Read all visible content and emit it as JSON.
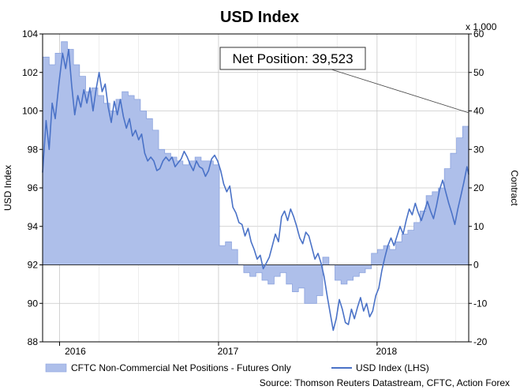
{
  "chart_data": {
    "type": "area+line",
    "title": "USD Index",
    "ylabel_left": "USD Index",
    "ylabel_right": "Contract",
    "right_scale_note": "x 1,000",
    "ylim_left": [
      88,
      104
    ],
    "ylim_right": [
      -20,
      60
    ],
    "yticks_left": [
      "88",
      "90",
      "92",
      "94",
      "96",
      "98",
      "100",
      "102",
      "104"
    ],
    "yticks_right": [
      "-20",
      "-10",
      "0",
      "10",
      "20",
      "30",
      "40",
      "50",
      "60"
    ],
    "xlim": [
      "2015-11-23",
      "2018-07-31"
    ],
    "xtick_labels": [
      {
        "date": "2016-01-01",
        "label": "2016"
      },
      {
        "date": "2017-01-01",
        "label": "2017"
      },
      {
        "date": "2018-01-01",
        "label": "2018"
      }
    ],
    "grid": true,
    "legend_position": "bottom",
    "annotation": {
      "text": "Net Position: 39,523",
      "date": "2018-07-31",
      "value": 39.523
    },
    "source": "Source: Thomson Reuters Datastream, CFTC, Action Forex",
    "colors": {
      "area_fill": "#aebfea",
      "area_edge": "#8aa2de",
      "line": "#4a72c7",
      "grid": "#c8c8c8"
    },
    "series": [
      {
        "name": "CFTC Non-Commercial Net Positions - Futures Only",
        "type": "area",
        "axis": "right",
        "points": [
          [
            "2015-11-23",
            54
          ],
          [
            "2015-12-08",
            52
          ],
          [
            "2015-12-22",
            55
          ],
          [
            "2016-01-05",
            58
          ],
          [
            "2016-01-19",
            56
          ],
          [
            "2016-02-02",
            52
          ],
          [
            "2016-02-16",
            49
          ],
          [
            "2016-03-01",
            45
          ],
          [
            "2016-03-15",
            46
          ],
          [
            "2016-03-29",
            44
          ],
          [
            "2016-04-12",
            42
          ],
          [
            "2016-04-26",
            40
          ],
          [
            "2016-05-10",
            43
          ],
          [
            "2016-05-24",
            45
          ],
          [
            "2016-06-07",
            44
          ],
          [
            "2016-06-21",
            43
          ],
          [
            "2016-07-05",
            40
          ],
          [
            "2016-07-19",
            38
          ],
          [
            "2016-08-02",
            35
          ],
          [
            "2016-08-16",
            30
          ],
          [
            "2016-08-30",
            29
          ],
          [
            "2016-09-13",
            28
          ],
          [
            "2016-09-27",
            27
          ],
          [
            "2016-10-11",
            26
          ],
          [
            "2016-10-25",
            27
          ],
          [
            "2016-11-08",
            28
          ],
          [
            "2016-11-22",
            27
          ],
          [
            "2016-12-06",
            27
          ],
          [
            "2016-12-20",
            26
          ],
          [
            "2016-12-30",
            26
          ],
          [
            "2017-01-03",
            5
          ],
          [
            "2017-01-17",
            6
          ],
          [
            "2017-01-31",
            4
          ],
          [
            "2017-02-14",
            0
          ],
          [
            "2017-02-28",
            -2
          ],
          [
            "2017-03-14",
            -3
          ],
          [
            "2017-03-28",
            -2
          ],
          [
            "2017-04-11",
            -4
          ],
          [
            "2017-04-25",
            -5
          ],
          [
            "2017-05-09",
            -3
          ],
          [
            "2017-05-23",
            -2
          ],
          [
            "2017-06-06",
            -5
          ],
          [
            "2017-06-20",
            -7
          ],
          [
            "2017-07-04",
            -6
          ],
          [
            "2017-07-18",
            -10
          ],
          [
            "2017-08-01",
            -10
          ],
          [
            "2017-08-15",
            -8
          ],
          [
            "2017-08-29",
            2
          ],
          [
            "2017-09-12",
            0
          ],
          [
            "2017-09-26",
            -4
          ],
          [
            "2017-10-10",
            -5
          ],
          [
            "2017-10-24",
            -4
          ],
          [
            "2017-11-07",
            -3
          ],
          [
            "2017-11-21",
            -2
          ],
          [
            "2017-12-05",
            -1
          ],
          [
            "2017-12-19",
            3
          ],
          [
            "2018-01-02",
            4
          ],
          [
            "2018-01-16",
            5
          ],
          [
            "2018-01-30",
            4
          ],
          [
            "2018-02-13",
            6
          ],
          [
            "2018-02-27",
            8
          ],
          [
            "2018-03-13",
            9
          ],
          [
            "2018-03-27",
            11
          ],
          [
            "2018-04-10",
            14
          ],
          [
            "2018-04-24",
            18
          ],
          [
            "2018-05-08",
            19
          ],
          [
            "2018-05-22",
            20
          ],
          [
            "2018-06-05",
            25
          ],
          [
            "2018-06-19",
            29
          ],
          [
            "2018-07-03",
            33
          ],
          [
            "2018-07-17",
            36
          ],
          [
            "2018-07-31",
            39.5
          ]
        ]
      },
      {
        "name": "USD Index (LHS)",
        "type": "line",
        "axis": "left",
        "points": [
          [
            "2015-11-23",
            96.8
          ],
          [
            "2015-12-01",
            99.5
          ],
          [
            "2015-12-08",
            98.0
          ],
          [
            "2015-12-15",
            100.4
          ],
          [
            "2015-12-22",
            99.6
          ],
          [
            "2015-12-31",
            101.5
          ],
          [
            "2016-01-08",
            103.0
          ],
          [
            "2016-01-15",
            102.2
          ],
          [
            "2016-01-22",
            103.2
          ],
          [
            "2016-01-29",
            101.3
          ],
          [
            "2016-02-05",
            99.8
          ],
          [
            "2016-02-12",
            100.8
          ],
          [
            "2016-02-19",
            100.2
          ],
          [
            "2016-02-26",
            101.1
          ],
          [
            "2016-03-04",
            100.4
          ],
          [
            "2016-03-11",
            101.2
          ],
          [
            "2016-03-18",
            100.0
          ],
          [
            "2016-03-25",
            101.1
          ],
          [
            "2016-04-01",
            102.0
          ],
          [
            "2016-04-08",
            101.0
          ],
          [
            "2016-04-15",
            101.4
          ],
          [
            "2016-04-22",
            100.2
          ],
          [
            "2016-04-29",
            99.4
          ],
          [
            "2016-05-06",
            100.5
          ],
          [
            "2016-05-13",
            99.8
          ],
          [
            "2016-05-20",
            100.6
          ],
          [
            "2016-05-27",
            99.7
          ],
          [
            "2016-06-03",
            99.1
          ],
          [
            "2016-06-10",
            99.6
          ],
          [
            "2016-06-17",
            98.7
          ],
          [
            "2016-06-24",
            99.0
          ],
          [
            "2016-07-01",
            98.5
          ],
          [
            "2016-07-08",
            98.8
          ],
          [
            "2016-07-15",
            97.8
          ],
          [
            "2016-07-22",
            97.4
          ],
          [
            "2016-07-29",
            97.6
          ],
          [
            "2016-08-05",
            97.4
          ],
          [
            "2016-08-12",
            96.9
          ],
          [
            "2016-08-19",
            97.0
          ],
          [
            "2016-08-26",
            97.4
          ],
          [
            "2016-09-02",
            97.6
          ],
          [
            "2016-09-09",
            97.4
          ],
          [
            "2016-09-16",
            97.6
          ],
          [
            "2016-09-23",
            97.1
          ],
          [
            "2016-09-30",
            97.3
          ],
          [
            "2016-10-07",
            97.5
          ],
          [
            "2016-10-14",
            97.9
          ],
          [
            "2016-10-21",
            97.6
          ],
          [
            "2016-10-28",
            97.2
          ],
          [
            "2016-11-04",
            96.9
          ],
          [
            "2016-11-11",
            97.4
          ],
          [
            "2016-11-18",
            97.1
          ],
          [
            "2016-11-25",
            97.0
          ],
          [
            "2016-12-02",
            96.6
          ],
          [
            "2016-12-09",
            96.9
          ],
          [
            "2016-12-16",
            97.5
          ],
          [
            "2016-12-23",
            97.7
          ],
          [
            "2016-12-30",
            97.4
          ],
          [
            "2017-01-06",
            96.9
          ],
          [
            "2017-01-13",
            96.2
          ],
          [
            "2017-01-20",
            95.8
          ],
          [
            "2017-01-27",
            96.1
          ],
          [
            "2017-02-03",
            95.0
          ],
          [
            "2017-02-10",
            94.7
          ],
          [
            "2017-02-17",
            94.2
          ],
          [
            "2017-02-24",
            94.1
          ],
          [
            "2017-03-03",
            93.5
          ],
          [
            "2017-03-10",
            93.9
          ],
          [
            "2017-03-17",
            93.2
          ],
          [
            "2017-03-24",
            92.8
          ],
          [
            "2017-03-31",
            92.3
          ],
          [
            "2017-04-07",
            92.5
          ],
          [
            "2017-04-14",
            91.8
          ],
          [
            "2017-04-21",
            92.1
          ],
          [
            "2017-04-28",
            92.4
          ],
          [
            "2017-05-05",
            93.0
          ],
          [
            "2017-05-12",
            93.6
          ],
          [
            "2017-05-19",
            93.2
          ],
          [
            "2017-05-26",
            94.5
          ],
          [
            "2017-06-02",
            94.8
          ],
          [
            "2017-06-09",
            94.3
          ],
          [
            "2017-06-16",
            94.9
          ],
          [
            "2017-06-23",
            94.5
          ],
          [
            "2017-06-30",
            94.0
          ],
          [
            "2017-07-07",
            93.4
          ],
          [
            "2017-07-14",
            93.1
          ],
          [
            "2017-07-21",
            93.7
          ],
          [
            "2017-07-28",
            93.5
          ],
          [
            "2017-08-04",
            92.9
          ],
          [
            "2017-08-11",
            92.3
          ],
          [
            "2017-08-18",
            92.6
          ],
          [
            "2017-08-25",
            92.1
          ],
          [
            "2017-09-01",
            91.4
          ],
          [
            "2017-09-08",
            90.4
          ],
          [
            "2017-09-15",
            89.5
          ],
          [
            "2017-09-22",
            88.6
          ],
          [
            "2017-09-29",
            89.2
          ],
          [
            "2017-10-06",
            90.2
          ],
          [
            "2017-10-13",
            89.7
          ],
          [
            "2017-10-20",
            89.0
          ],
          [
            "2017-10-27",
            88.9
          ],
          [
            "2017-11-03",
            89.7
          ],
          [
            "2017-11-10",
            89.2
          ],
          [
            "2017-11-17",
            89.8
          ],
          [
            "2017-11-24",
            90.3
          ],
          [
            "2017-12-01",
            89.6
          ],
          [
            "2017-12-08",
            90.0
          ],
          [
            "2017-12-15",
            89.3
          ],
          [
            "2017-12-22",
            89.6
          ],
          [
            "2017-12-29",
            90.4
          ],
          [
            "2018-01-05",
            90.8
          ],
          [
            "2018-01-12",
            91.7
          ],
          [
            "2018-01-19",
            92.4
          ],
          [
            "2018-01-26",
            93.0
          ],
          [
            "2018-02-02",
            93.4
          ],
          [
            "2018-02-09",
            93.0
          ],
          [
            "2018-02-16",
            93.5
          ],
          [
            "2018-02-23",
            94.0
          ],
          [
            "2018-03-02",
            93.6
          ],
          [
            "2018-03-09",
            94.3
          ],
          [
            "2018-03-16",
            94.9
          ],
          [
            "2018-03-23",
            94.6
          ],
          [
            "2018-03-30",
            95.2
          ],
          [
            "2018-04-06",
            94.7
          ],
          [
            "2018-04-13",
            94.3
          ],
          [
            "2018-04-20",
            94.8
          ],
          [
            "2018-04-27",
            95.3
          ],
          [
            "2018-05-04",
            94.8
          ],
          [
            "2018-05-11",
            94.4
          ],
          [
            "2018-05-18",
            95.1
          ],
          [
            "2018-05-25",
            95.9
          ],
          [
            "2018-06-01",
            96.4
          ],
          [
            "2018-06-08",
            95.8
          ],
          [
            "2018-06-15",
            95.2
          ],
          [
            "2018-06-22",
            94.7
          ],
          [
            "2018-06-29",
            94.1
          ],
          [
            "2018-07-06",
            94.9
          ],
          [
            "2018-07-13",
            95.6
          ],
          [
            "2018-07-20",
            96.3
          ],
          [
            "2018-07-27",
            97.1
          ],
          [
            "2018-07-31",
            96.7
          ]
        ]
      }
    ]
  }
}
